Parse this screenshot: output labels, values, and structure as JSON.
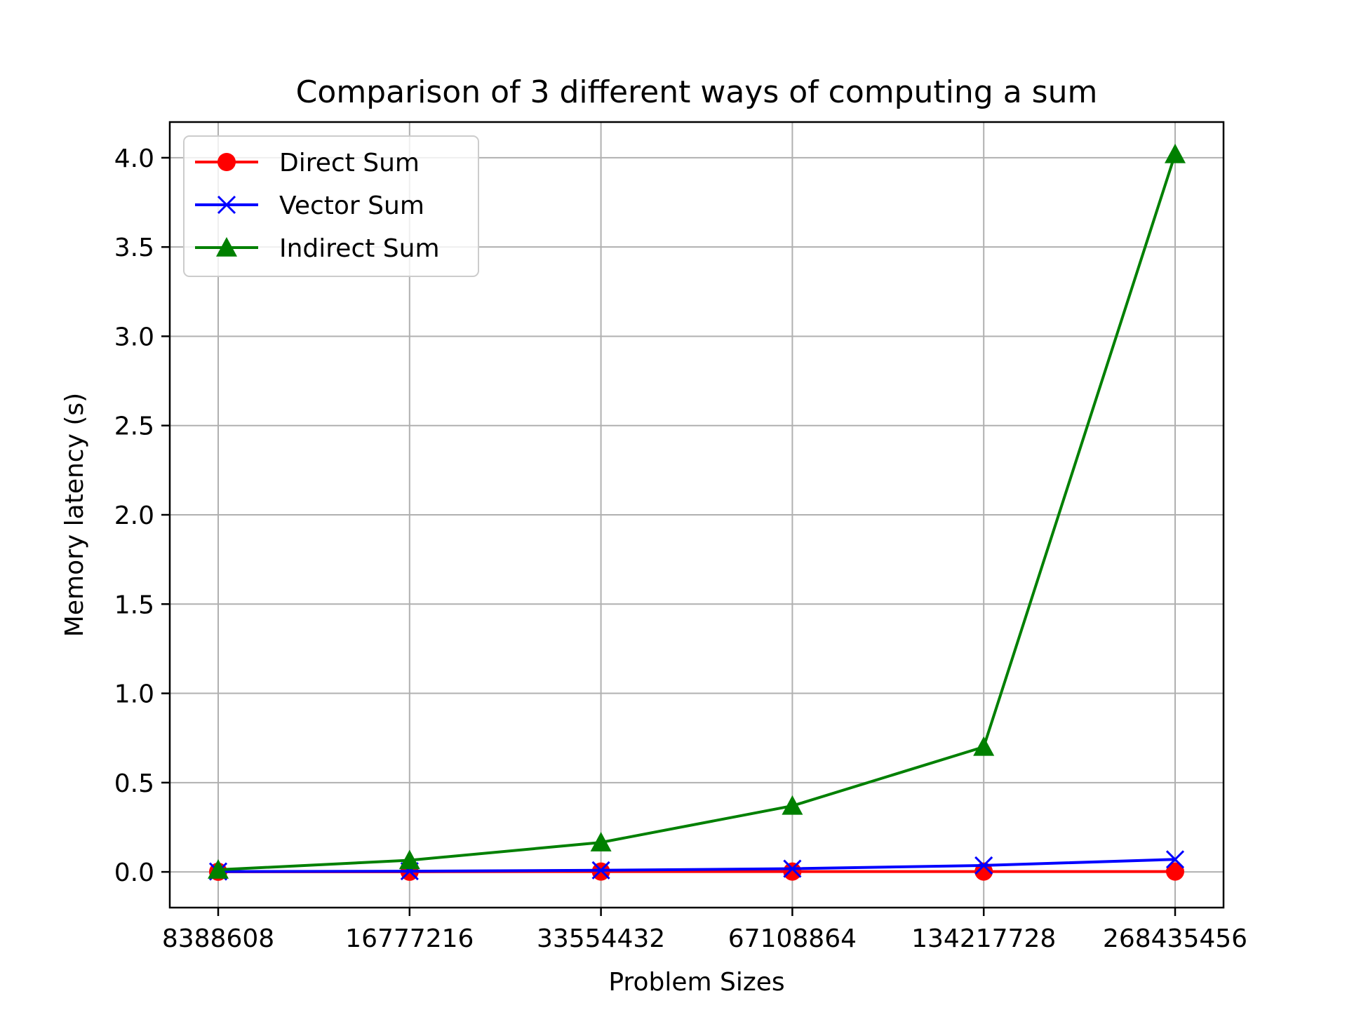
{
  "chart_data": {
    "type": "line",
    "title": "Comparison of 3 different ways of computing a sum",
    "xlabel": "Problem Sizes",
    "ylabel": "Memory latency (s)",
    "categories": [
      "8388608",
      "16777216",
      "33554432",
      "67108864",
      "134217728",
      "268435456"
    ],
    "ylim": [
      -0.2,
      4.2
    ],
    "yticks": [
      0.0,
      0.5,
      1.0,
      1.5,
      2.0,
      2.5,
      3.0,
      3.5,
      4.0
    ],
    "ytick_labels": [
      "0.0",
      "0.5",
      "1.0",
      "1.5",
      "2.0",
      "2.5",
      "3.0",
      "3.5",
      "4.0"
    ],
    "grid": true,
    "legend_position": "top-left",
    "series": [
      {
        "name": "Direct Sum",
        "color": "#ff0000",
        "marker": "circle",
        "values": [
          0.001,
          0.001,
          0.002,
          0.002,
          0.002,
          0.002
        ]
      },
      {
        "name": "Vector Sum",
        "color": "#0000ff",
        "marker": "x",
        "values": [
          0.002,
          0.004,
          0.009,
          0.018,
          0.036,
          0.07
        ]
      },
      {
        "name": "Indirect Sum",
        "color": "#008000",
        "marker": "triangle",
        "values": [
          0.012,
          0.065,
          0.165,
          0.37,
          0.7,
          4.02
        ]
      }
    ]
  }
}
